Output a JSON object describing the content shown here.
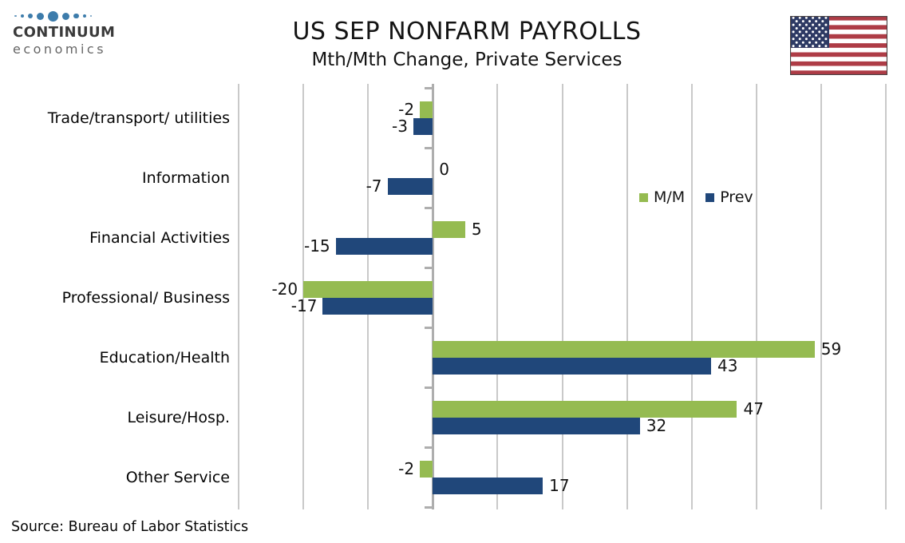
{
  "logo": {
    "name": "CONTINUUM",
    "tagline": "economics",
    "dot_color": "#3d7cab"
  },
  "source_note": "Source: Bureau of Labor Statistics",
  "flag_colors": {
    "red": "#ae3c46",
    "blue": "#2e3a64",
    "white": "#ffffff",
    "border": "#4a4243"
  },
  "chart_data": {
    "type": "bar",
    "orientation": "horizontal",
    "title": "US SEP NONFARM PAYROLLS",
    "subtitle": "Mth/Mth Change, Private Services",
    "categories": [
      "Trade/transport/ utilities",
      "Information",
      "Financial Activities",
      "Professional/ Business",
      "Education/Health",
      "Leisure/Hosp.",
      "Other Service"
    ],
    "series": [
      {
        "name": "M/M",
        "color": "#95bb51",
        "values": [
          -2,
          0,
          5,
          -20,
          59,
          47,
          -2
        ]
      },
      {
        "name": "Prev",
        "color": "#20477a",
        "values": [
          -3,
          -7,
          -15,
          -17,
          43,
          32,
          17
        ]
      }
    ],
    "xlim": [
      -30,
      70
    ],
    "grid_step": 10,
    "grid": true,
    "axis_tick_labels_shown": false,
    "data_labels_shown": true,
    "legend_position": "inside-upper-right",
    "xlabel": "",
    "ylabel": ""
  }
}
